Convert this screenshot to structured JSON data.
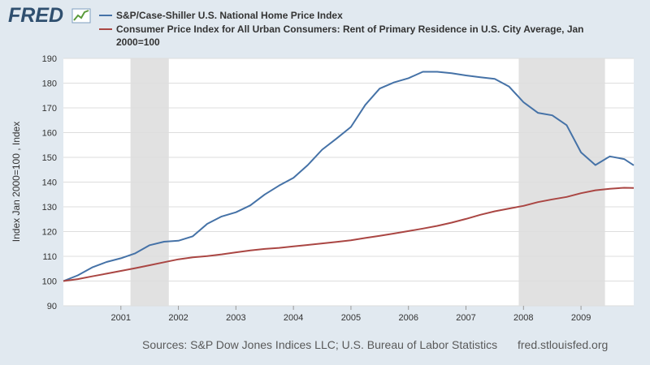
{
  "brand": {
    "logo_text": "FRED",
    "logo_icon": "chart-trend-icon"
  },
  "legend": [
    {
      "label": "S&P/Case-Shiller U.S. National Home Price Index",
      "color": "#4572a7"
    },
    {
      "label_line1": "Consumer Price Index for All Urban Consumers: Rent of Primary Residence in U.S. City Average, Jan",
      "label_line2": "2000=100",
      "color": "#aa4643"
    }
  ],
  "footer": {
    "sources": "Sources: S&P Dow Jones Indices LLC; U.S. Bureau of Labor Statistics",
    "site": "fred.stlouisfed.org"
  },
  "colors": {
    "background": "#e1e9f0",
    "plot_background": "#ffffff",
    "recession_shading": "#e1e1e1",
    "home_price": "#4572a7",
    "rent": "#aa4643",
    "grid": "#dddddd",
    "axis_text": "#333333",
    "footer_text": "#595959"
  },
  "chart_data": {
    "type": "line",
    "ylabel": "Index Jan 2000=100 , Index",
    "xlabel": "",
    "xlim": [
      2000.0,
      2009.917
    ],
    "ylim": [
      90,
      190
    ],
    "yticks": [
      90,
      100,
      110,
      120,
      130,
      140,
      150,
      160,
      170,
      180,
      190
    ],
    "xticks": [
      {
        "label": "2001",
        "value": 2001
      },
      {
        "label": "2002",
        "value": 2002
      },
      {
        "label": "2003",
        "value": 2003
      },
      {
        "label": "2004",
        "value": 2004
      },
      {
        "label": "2005",
        "value": 2005
      },
      {
        "label": "2006",
        "value": 2006
      },
      {
        "label": "2007",
        "value": 2007
      },
      {
        "label": "2008",
        "value": 2008
      },
      {
        "label": "2009",
        "value": 2009
      }
    ],
    "grid": true,
    "recessions": [
      {
        "start": 2001.167,
        "end": 2001.833
      },
      {
        "start": 2007.917,
        "end": 2009.417
      }
    ],
    "series": [
      {
        "name": "S&P/Case-Shiller U.S. National Home Price Index",
        "x": [
          2000.0,
          2000.25,
          2000.5,
          2000.75,
          2001.0,
          2001.25,
          2001.5,
          2001.75,
          2002.0,
          2002.25,
          2002.5,
          2002.75,
          2003.0,
          2003.25,
          2003.5,
          2003.75,
          2004.0,
          2004.25,
          2004.5,
          2004.75,
          2005.0,
          2005.25,
          2005.5,
          2005.75,
          2006.0,
          2006.25,
          2006.5,
          2006.75,
          2007.0,
          2007.25,
          2007.5,
          2007.75,
          2008.0,
          2008.25,
          2008.5,
          2008.75,
          2009.0,
          2009.25,
          2009.5,
          2009.75,
          2009.917
        ],
        "values": [
          100.0,
          102.3,
          105.5,
          107.7,
          109.2,
          111.2,
          114.5,
          115.9,
          116.3,
          118.1,
          123.1,
          126.1,
          127.8,
          130.6,
          135.0,
          138.6,
          141.7,
          146.9,
          153.1,
          157.6,
          162.3,
          171.2,
          177.8,
          180.3,
          182.0,
          184.6,
          184.6,
          184.0,
          183.1,
          182.4,
          181.7,
          178.6,
          172.3,
          168.0,
          167.0,
          163.0,
          152.0,
          146.9,
          150.4,
          149.3,
          146.8
        ]
      },
      {
        "name": "Consumer Price Index for All Urban Consumers: Rent of Primary Residence in U.S. City Average, Jan 2000=100",
        "x": [
          2000.0,
          2000.25,
          2000.5,
          2000.75,
          2001.0,
          2001.25,
          2001.5,
          2001.75,
          2002.0,
          2002.25,
          2002.5,
          2002.75,
          2003.0,
          2003.25,
          2003.5,
          2003.75,
          2004.0,
          2004.25,
          2004.5,
          2004.75,
          2005.0,
          2005.25,
          2005.5,
          2005.75,
          2006.0,
          2006.25,
          2006.5,
          2006.75,
          2007.0,
          2007.25,
          2007.5,
          2007.75,
          2008.0,
          2008.25,
          2008.5,
          2008.75,
          2009.0,
          2009.25,
          2009.5,
          2009.75,
          2009.917
        ],
        "values": [
          100.0,
          100.8,
          101.9,
          103.0,
          104.1,
          105.2,
          106.4,
          107.6,
          108.8,
          109.6,
          110.1,
          110.8,
          111.6,
          112.4,
          113.0,
          113.4,
          114.0,
          114.6,
          115.2,
          115.8,
          116.5,
          117.4,
          118.3,
          119.2,
          120.2,
          121.2,
          122.3,
          123.6,
          125.1,
          126.8,
          128.2,
          129.3,
          130.4,
          131.9,
          133.0,
          134.0,
          135.5,
          136.7,
          137.3,
          137.7,
          137.6
        ]
      }
    ]
  }
}
